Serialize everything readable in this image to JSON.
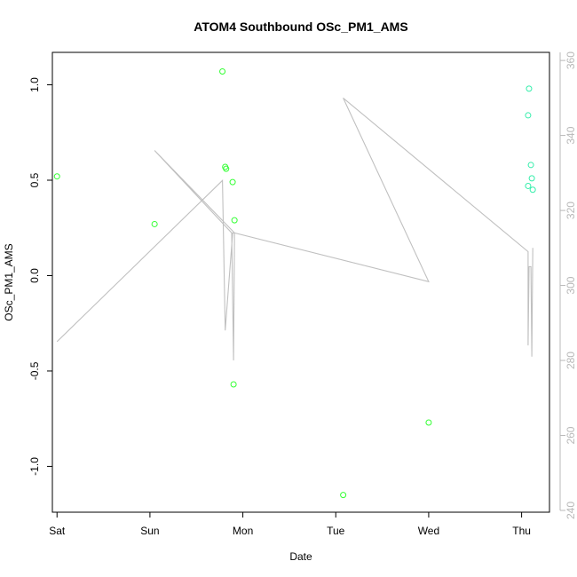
{
  "chart_data": {
    "type": "scatter",
    "title": "ATOM4 Southbound OSc_PM1_AMS",
    "xlabel": "Date",
    "ylabel": "OSc_PM1_AMS",
    "xlim": [
      -0.05,
      5.3
    ],
    "ylim": [
      -1.24,
      1.17
    ],
    "y2lim": [
      240,
      365
    ],
    "x_ticks": [
      {
        "value": 0,
        "label": "Sat"
      },
      {
        "value": 1,
        "label": "Sun"
      },
      {
        "value": 2,
        "label": "Mon"
      },
      {
        "value": 3,
        "label": "Tue"
      },
      {
        "value": 4,
        "label": "Wed"
      },
      {
        "value": 5,
        "label": "Thu"
      }
    ],
    "y_ticks": [
      -1.0,
      -0.5,
      0.0,
      0.5,
      1.0
    ],
    "y_tick_labels": [
      "-1.0",
      "-0.5",
      "0.0",
      "0.5",
      "1.0"
    ],
    "y2_ticks": [
      240,
      260,
      280,
      300,
      320,
      340,
      360
    ],
    "y2_tick_labels": [
      "240",
      "260",
      "280",
      "300",
      "320",
      "340",
      "360"
    ],
    "series": [
      {
        "axis": "left",
        "style": "points",
        "color": "#33ff33",
        "points": [
          {
            "x": 0.0,
            "y": 0.52
          },
          {
            "x": 1.05,
            "y": 0.27
          },
          {
            "x": 1.78,
            "y": 1.07
          },
          {
            "x": 1.81,
            "y": 0.57
          },
          {
            "x": 1.82,
            "y": 0.56
          },
          {
            "x": 1.89,
            "y": 0.49
          },
          {
            "x": 1.91,
            "y": 0.29
          },
          {
            "x": 1.9,
            "y": -0.57
          },
          {
            "x": 3.08,
            "y": -1.15
          },
          {
            "x": 4.0,
            "y": -0.77
          }
        ]
      },
      {
        "axis": "left",
        "style": "points",
        "color": "#33eeaa",
        "points": [
          {
            "x": 5.08,
            "y": 0.98
          },
          {
            "x": 5.07,
            "y": 0.84
          },
          {
            "x": 5.1,
            "y": 0.58
          },
          {
            "x": 5.11,
            "y": 0.51
          },
          {
            "x": 5.07,
            "y": 0.47
          },
          {
            "x": 5.12,
            "y": 0.45
          }
        ]
      },
      {
        "axis": "right",
        "style": "line",
        "color": "#c0c0c0",
        "points": [
          {
            "x": 0.0,
            "y": 285
          },
          {
            "x": 1.78,
            "y": 328
          },
          {
            "x": 1.81,
            "y": 288
          },
          {
            "x": 1.89,
            "y": 314
          },
          {
            "x": 1.91,
            "y": 314
          },
          {
            "x": 1.9,
            "y": 280
          },
          {
            "x": 1.88,
            "y": 314
          },
          {
            "x": 1.05,
            "y": 336
          },
          {
            "x": 1.91,
            "y": 314
          },
          {
            "x": 4.0,
            "y": 301
          },
          {
            "x": 3.08,
            "y": 350
          },
          {
            "x": 5.07,
            "y": 309
          },
          {
            "x": 5.07,
            "y": 284
          },
          {
            "x": 5.08,
            "y": 305
          },
          {
            "x": 5.1,
            "y": 305
          },
          {
            "x": 5.11,
            "y": 281
          },
          {
            "x": 5.12,
            "y": 310
          }
        ]
      }
    ]
  }
}
